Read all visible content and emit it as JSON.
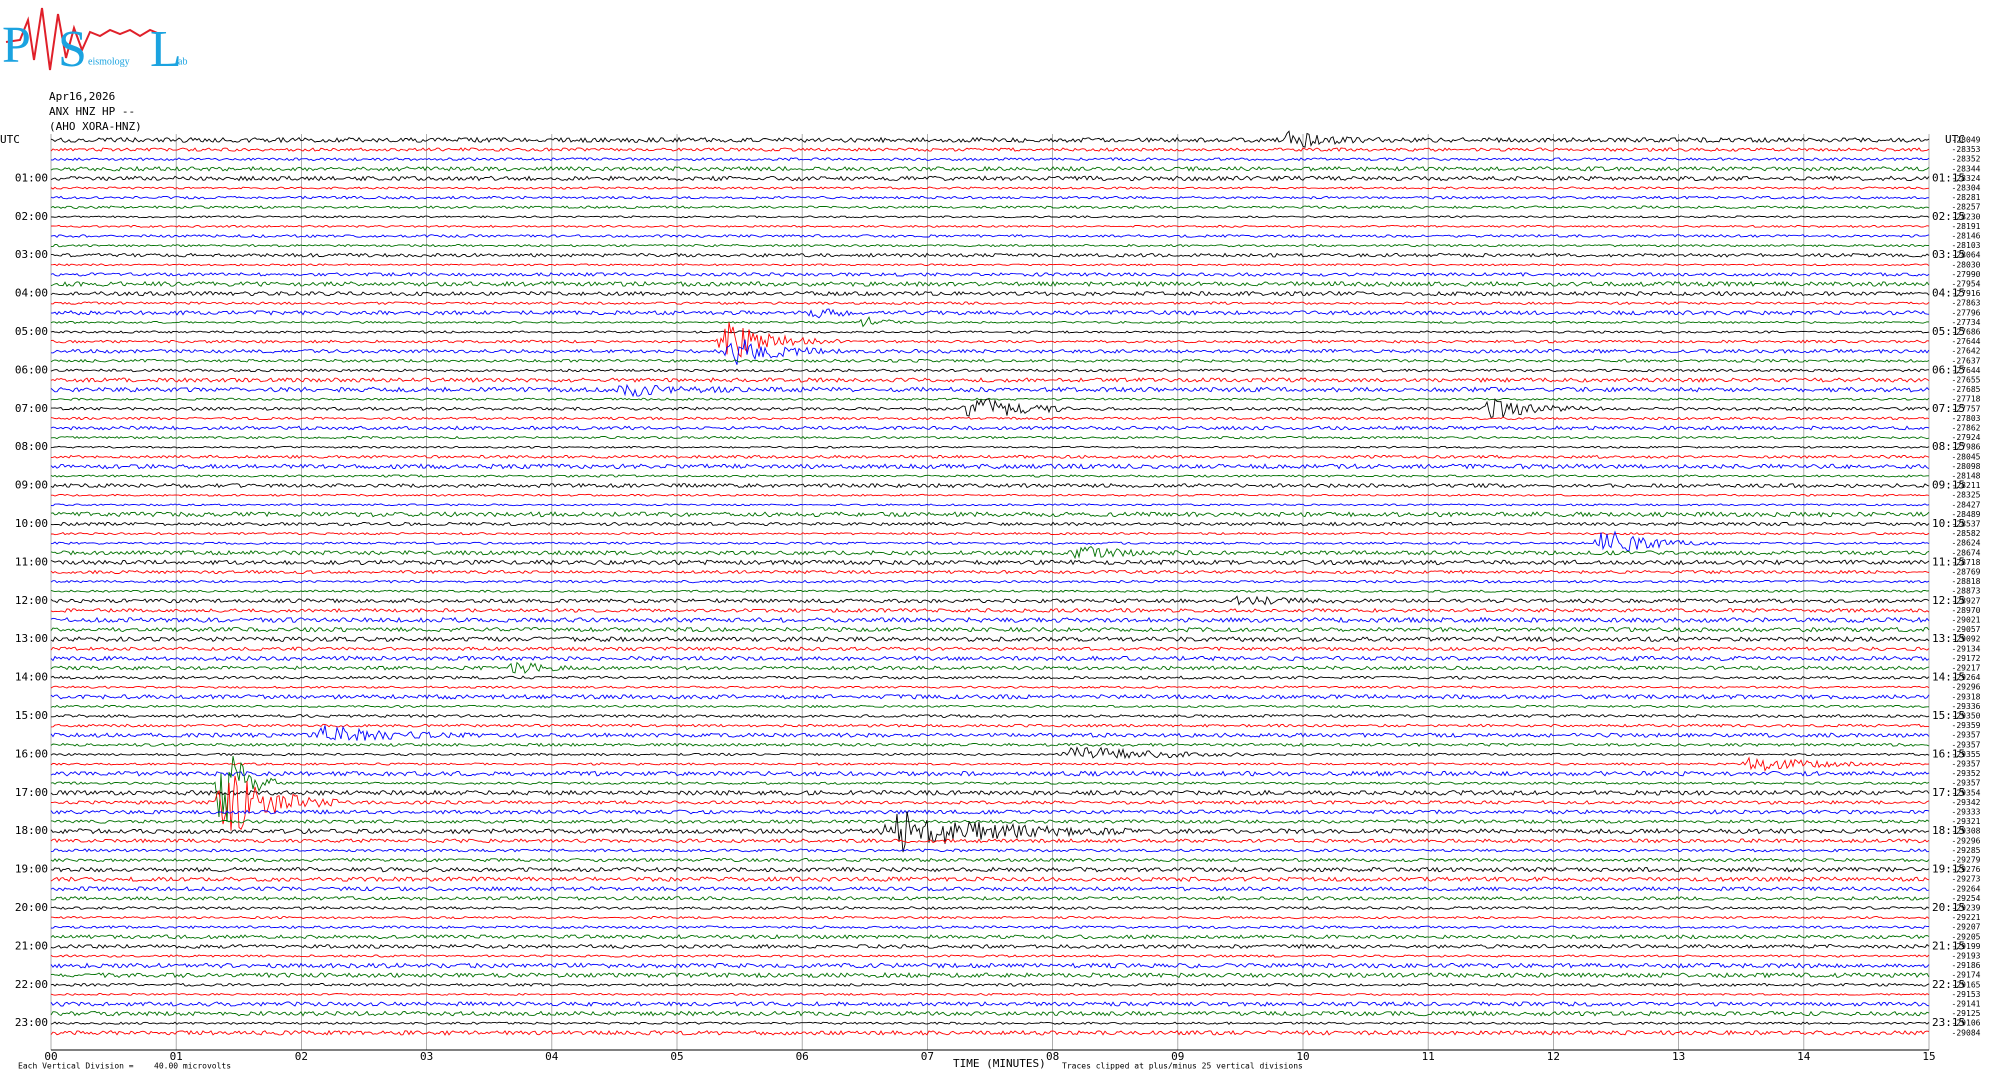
{
  "logo": {
    "letters": [
      "P",
      "S",
      "L"
    ],
    "small": [
      "eismology",
      "ab"
    ]
  },
  "header": {
    "date": "Apr16,2026",
    "station": "ANX HNZ HP --",
    "alias": "(AHO XORA-HNZ)"
  },
  "left_labels": [
    "UTC",
    "01:00",
    "02:00",
    "03:00",
    "04:00",
    "05:00",
    "06:00",
    "07:00",
    "08:00",
    "09:00",
    "10:00",
    "11:00",
    "12:00",
    "13:00",
    "14:00",
    "15:00",
    "16:00",
    "17:00",
    "18:00",
    "19:00",
    "20:00",
    "21:00",
    "22:00",
    "23:00"
  ],
  "right_labels": [
    "UTC",
    "01:15",
    "02:15",
    "03:15",
    "04:15",
    "05:15",
    "06:15",
    "07:15",
    "08:15",
    "09:15",
    "10:15",
    "11:15",
    "12:15",
    "13:15",
    "14:15",
    "15:15",
    "16:15",
    "17:15",
    "18:15",
    "19:15",
    "20:15",
    "21:15",
    "22:15",
    "23:15"
  ],
  "trace_offsets": [
    -28049,
    -28353,
    -28352,
    -28344,
    -28324,
    -28304,
    -28281,
    -28257,
    -28230,
    -28191,
    -28146,
    -28103,
    -28064,
    -28030,
    -27990,
    -27954,
    -27916,
    -27863,
    -27796,
    -27734,
    -27686,
    -27644,
    -27642,
    -27637,
    -27644,
    -27655,
    -27685,
    -27718,
    -27757,
    -27803,
    -27862,
    -27924,
    -27986,
    -28045,
    -28098,
    -28148,
    -28211,
    -28325,
    -28427,
    -28489,
    -28537,
    -28582,
    -28624,
    -28674,
    -28718,
    -28769,
    -28818,
    -28873,
    -28927,
    -28970,
    -29021,
    -29057,
    -29092,
    -29134,
    -29172,
    -29217,
    -29264,
    -29296,
    -29318,
    -29336,
    -29350,
    -29359,
    -29357,
    -29357,
    -29355,
    -29357,
    -29352,
    -29357,
    -29354,
    -29342,
    -29333,
    -29321,
    -29308,
    -29296,
    -29285,
    -29279,
    -29276,
    -29273,
    -29264,
    -29254,
    -29239,
    -29221,
    -29207,
    -29205,
    -29199,
    -29193,
    -29186,
    -29174,
    -29165,
    -29153,
    -29141,
    -29125,
    -29106,
    -29084
  ],
  "x_axis": {
    "ticks": [
      "00",
      "01",
      "02",
      "03",
      "04",
      "05",
      "06",
      "07",
      "08",
      "09",
      "10",
      "11",
      "12",
      "13",
      "14",
      "15"
    ],
    "title": "TIME (MINUTES)"
  },
  "footer": {
    "division_label": "Each Vertical Division =",
    "division_value": "40.00 microvolts",
    "clip_note": "Traces clipped at plus/minus 25 vertical divisions"
  }
}
